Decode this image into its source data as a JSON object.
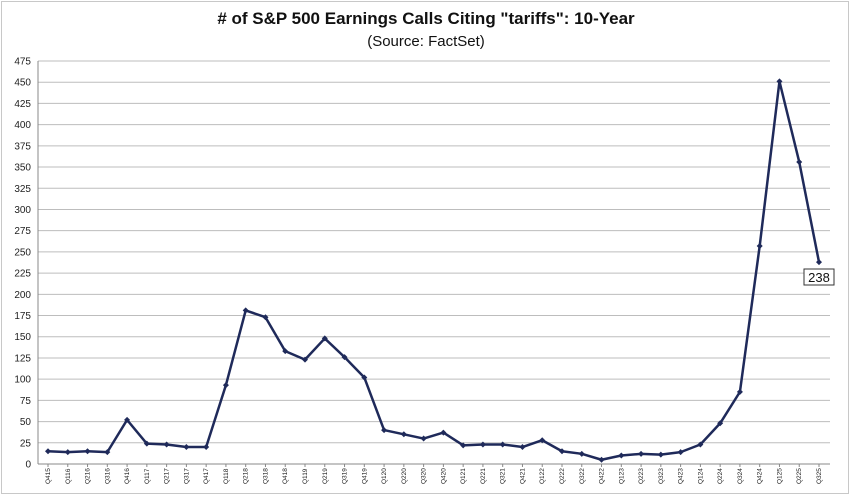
{
  "chart_data": {
    "type": "line",
    "title": "# of S&P 500 Earnings Calls Citing \"tariffs\": 10-Year",
    "subtitle": "(Source: FactSet)",
    "xlabel": "",
    "ylabel": "",
    "ylim": [
      0,
      475
    ],
    "y_ticks": [
      0,
      25,
      50,
      75,
      100,
      125,
      150,
      175,
      200,
      225,
      250,
      275,
      300,
      325,
      350,
      375,
      400,
      425,
      450,
      475
    ],
    "grid": true,
    "categories": [
      "Q415",
      "Q116",
      "Q216",
      "Q316",
      "Q416",
      "Q117",
      "Q217",
      "Q317",
      "Q417",
      "Q118",
      "Q218",
      "Q318",
      "Q418",
      "Q119",
      "Q219",
      "Q319",
      "Q419",
      "Q120",
      "Q220",
      "Q320",
      "Q420",
      "Q121",
      "Q221",
      "Q321",
      "Q421",
      "Q122",
      "Q222",
      "Q322",
      "Q422",
      "Q123",
      "Q223",
      "Q323",
      "Q423",
      "Q124",
      "Q224",
      "Q324",
      "Q424",
      "Q125",
      "Q225",
      "Q325"
    ],
    "series": [
      {
        "color": "#1f2a5a",
        "values": [
          15,
          14,
          15,
          14,
          52,
          24,
          23,
          20,
          20,
          93,
          181,
          173,
          133,
          123,
          148,
          126,
          102,
          40,
          35,
          30,
          37,
          22,
          23,
          23,
          20,
          28,
          15,
          12,
          5,
          10,
          12,
          11,
          14,
          23,
          48,
          85,
          257,
          451,
          356,
          238
        ]
      }
    ],
    "annotations": [
      {
        "text": "238"
      }
    ]
  }
}
